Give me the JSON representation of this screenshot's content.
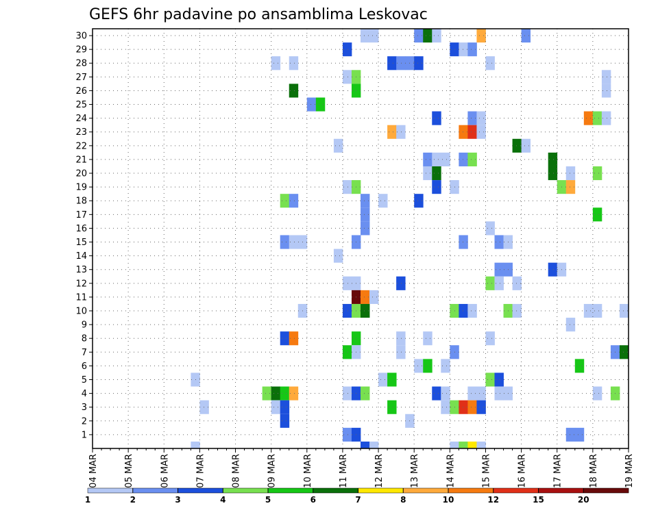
{
  "chart_data": {
    "type": "heatmap",
    "title": "GEFS 6hr padavine po ansamblima Leskovac",
    "xlabel": "",
    "ylabel": "",
    "x_ticks": [
      "04 MAR",
      "05 MAR",
      "06 MAR",
      "07 MAR",
      "08 MAR",
      "09 MAR",
      "10 MAR",
      "11 MAR",
      "12 MAR",
      "13 MAR",
      "14 MAR",
      "15 MAR",
      "16 MAR",
      "17 MAR",
      "18 MAR",
      "19 MAR"
    ],
    "y_ticks": [
      "1",
      "2",
      "3",
      "4",
      "5",
      "6",
      "7",
      "8",
      "9",
      "10",
      "11",
      "12",
      "13",
      "14",
      "15",
      "16",
      "17",
      "18",
      "19",
      "20",
      "21",
      "22",
      "23",
      "24",
      "25",
      "26",
      "27",
      "28",
      "29",
      "30"
    ],
    "x_range_steps": [
      0,
      60
    ],
    "y_range": [
      0,
      30
    ],
    "grid": true,
    "colorbar_labels": [
      "1",
      "2",
      "3",
      "4",
      "5",
      "6",
      "7",
      "8",
      "10",
      "12",
      "15",
      "20"
    ],
    "colorbar_colors": [
      "#b4c8f5",
      "#6a8ff0",
      "#1c4fdc",
      "#78e050",
      "#16c716",
      "#0a700a",
      "#ffe800",
      "#ffaa3c",
      "#f67a10",
      "#e03018",
      "#a81010",
      "#680a0a"
    ],
    "note_units": "mm",
    "cells_format": "[member, step (6h from 04 MAR 00Z), level 1-12]",
    "cells": [
      [
        30,
        30,
        1
      ],
      [
        30,
        31,
        1
      ],
      [
        30,
        36,
        2
      ],
      [
        30,
        37,
        6
      ],
      [
        30,
        38,
        1
      ],
      [
        30,
        43,
        8
      ],
      [
        30,
        48,
        2
      ],
      [
        29,
        28,
        3
      ],
      [
        29,
        40,
        3
      ],
      [
        29,
        41,
        1
      ],
      [
        29,
        42,
        2
      ],
      [
        28,
        20,
        1
      ],
      [
        28,
        22,
        1
      ],
      [
        28,
        33,
        3
      ],
      [
        28,
        34,
        2
      ],
      [
        28,
        35,
        2
      ],
      [
        28,
        36,
        3
      ],
      [
        28,
        44,
        1
      ],
      [
        27,
        28,
        1
      ],
      [
        27,
        29,
        4
      ],
      [
        27,
        57,
        1
      ],
      [
        26,
        22,
        6
      ],
      [
        26,
        29,
        5
      ],
      [
        26,
        57,
        1
      ],
      [
        25,
        24,
        2
      ],
      [
        25,
        25,
        5
      ],
      [
        24,
        38,
        3
      ],
      [
        24,
        42,
        2
      ],
      [
        24,
        43,
        1
      ],
      [
        24,
        55,
        9
      ],
      [
        24,
        56,
        4
      ],
      [
        24,
        57,
        1
      ],
      [
        23,
        33,
        8
      ],
      [
        23,
        34,
        1
      ],
      [
        23,
        41,
        9
      ],
      [
        23,
        42,
        10
      ],
      [
        23,
        43,
        1
      ],
      [
        22,
        27,
        1
      ],
      [
        22,
        47,
        6
      ],
      [
        22,
        48,
        1
      ],
      [
        21,
        37,
        2
      ],
      [
        21,
        38,
        1
      ],
      [
        21,
        39,
        1
      ],
      [
        21,
        41,
        2
      ],
      [
        21,
        42,
        4
      ],
      [
        21,
        51,
        6
      ],
      [
        20,
        37,
        1
      ],
      [
        20,
        38,
        6
      ],
      [
        20,
        51,
        6
      ],
      [
        20,
        53,
        1
      ],
      [
        20,
        56,
        4
      ],
      [
        19,
        28,
        1
      ],
      [
        19,
        29,
        4
      ],
      [
        19,
        38,
        3
      ],
      [
        19,
        40,
        1
      ],
      [
        19,
        52,
        4
      ],
      [
        19,
        53,
        8
      ],
      [
        18,
        21,
        4
      ],
      [
        18,
        22,
        2
      ],
      [
        18,
        30,
        2
      ],
      [
        18,
        32,
        1
      ],
      [
        18,
        36,
        3
      ],
      [
        17,
        30,
        2
      ],
      [
        17,
        56,
        5
      ],
      [
        16,
        30,
        2
      ],
      [
        16,
        44,
        1
      ],
      [
        15,
        21,
        2
      ],
      [
        15,
        22,
        1
      ],
      [
        15,
        23,
        1
      ],
      [
        15,
        29,
        2
      ],
      [
        15,
        41,
        2
      ],
      [
        15,
        45,
        2
      ],
      [
        15,
        46,
        1
      ],
      [
        14,
        27,
        1
      ],
      [
        13,
        45,
        2
      ],
      [
        13,
        46,
        2
      ],
      [
        13,
        51,
        3
      ],
      [
        13,
        52,
        1
      ],
      [
        12,
        28,
        1
      ],
      [
        12,
        29,
        1
      ],
      [
        12,
        34,
        3
      ],
      [
        12,
        44,
        4
      ],
      [
        12,
        45,
        1
      ],
      [
        12,
        47,
        1
      ],
      [
        11,
        29,
        12
      ],
      [
        11,
        30,
        9
      ],
      [
        11,
        31,
        1
      ],
      [
        10,
        23,
        1
      ],
      [
        10,
        28,
        3
      ],
      [
        10,
        29,
        4
      ],
      [
        10,
        30,
        6
      ],
      [
        10,
        40,
        4
      ],
      [
        10,
        41,
        3
      ],
      [
        10,
        42,
        1
      ],
      [
        10,
        46,
        4
      ],
      [
        10,
        47,
        1
      ],
      [
        10,
        55,
        1
      ],
      [
        10,
        56,
        1
      ],
      [
        10,
        59,
        1
      ],
      [
        9,
        53,
        1
      ],
      [
        8,
        21,
        3
      ],
      [
        8,
        22,
        9
      ],
      [
        8,
        29,
        5
      ],
      [
        8,
        34,
        1
      ],
      [
        8,
        37,
        1
      ],
      [
        8,
        44,
        1
      ],
      [
        7,
        28,
        5
      ],
      [
        7,
        29,
        1
      ],
      [
        7,
        34,
        1
      ],
      [
        7,
        40,
        2
      ],
      [
        7,
        58,
        2
      ],
      [
        7,
        59,
        6
      ],
      [
        6,
        36,
        1
      ],
      [
        6,
        37,
        5
      ],
      [
        6,
        39,
        1
      ],
      [
        6,
        54,
        5
      ],
      [
        5,
        11,
        1
      ],
      [
        5,
        32,
        1
      ],
      [
        5,
        33,
        5
      ],
      [
        5,
        44,
        4
      ],
      [
        5,
        45,
        3
      ],
      [
        4,
        19,
        4
      ],
      [
        4,
        20,
        6
      ],
      [
        4,
        21,
        5
      ],
      [
        4,
        22,
        8
      ],
      [
        4,
        28,
        1
      ],
      [
        4,
        29,
        3
      ],
      [
        4,
        30,
        4
      ],
      [
        4,
        38,
        3
      ],
      [
        4,
        39,
        1
      ],
      [
        4,
        42,
        1
      ],
      [
        4,
        43,
        1
      ],
      [
        4,
        45,
        1
      ],
      [
        4,
        46,
        1
      ],
      [
        4,
        56,
        1
      ],
      [
        4,
        58,
        4
      ],
      [
        3,
        12,
        1
      ],
      [
        3,
        20,
        1
      ],
      [
        3,
        21,
        3
      ],
      [
        3,
        33,
        5
      ],
      [
        3,
        39,
        1
      ],
      [
        3,
        40,
        4
      ],
      [
        3,
        41,
        10
      ],
      [
        3,
        42,
        9
      ],
      [
        3,
        43,
        3
      ],
      [
        2,
        21,
        3
      ],
      [
        2,
        35,
        1
      ],
      [
        1,
        28,
        2
      ],
      [
        1,
        29,
        3
      ],
      [
        1,
        53,
        2
      ],
      [
        1,
        54,
        2
      ],
      [
        0,
        11,
        1
      ],
      [
        0,
        30,
        3
      ],
      [
        0,
        31,
        1
      ],
      [
        0,
        40,
        1
      ],
      [
        0,
        41,
        4
      ],
      [
        0,
        42,
        7
      ],
      [
        0,
        43,
        1
      ]
    ]
  }
}
